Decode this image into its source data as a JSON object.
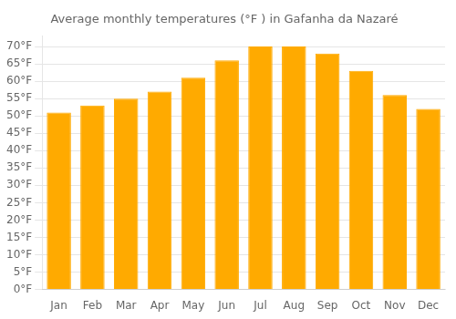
{
  "chart_data": {
    "type": "bar",
    "title": "Average monthly temperatures (°F ) in Gafanha da Nazaré",
    "categories": [
      "Jan",
      "Feb",
      "Mar",
      "Apr",
      "May",
      "Jun",
      "Jul",
      "Aug",
      "Sep",
      "Oct",
      "Nov",
      "Dec"
    ],
    "values": [
      51,
      53,
      55,
      57,
      61,
      66,
      70,
      70,
      68,
      63,
      56,
      52
    ],
    "color": "#FFAA00",
    "ylim": [
      0,
      73
    ],
    "yticks": [
      {
        "value": 0,
        "label": "0°F"
      },
      {
        "value": 5,
        "label": "5°F"
      },
      {
        "value": 10,
        "label": "10°F"
      },
      {
        "value": 15,
        "label": "15°F"
      },
      {
        "value": 20,
        "label": "20°F"
      },
      {
        "value": 25,
        "label": "25°F"
      },
      {
        "value": 30,
        "label": "30°F"
      },
      {
        "value": 35,
        "label": "35°F"
      },
      {
        "value": 40,
        "label": "40°F"
      },
      {
        "value": 45,
        "label": "45°F"
      },
      {
        "value": 50,
        "label": "50°F"
      },
      {
        "value": 55,
        "label": "55°F"
      },
      {
        "value": 60,
        "label": "60°F"
      },
      {
        "value": 65,
        "label": "65°F"
      },
      {
        "value": 70,
        "label": "70°F"
      }
    ],
    "grid": true
  }
}
